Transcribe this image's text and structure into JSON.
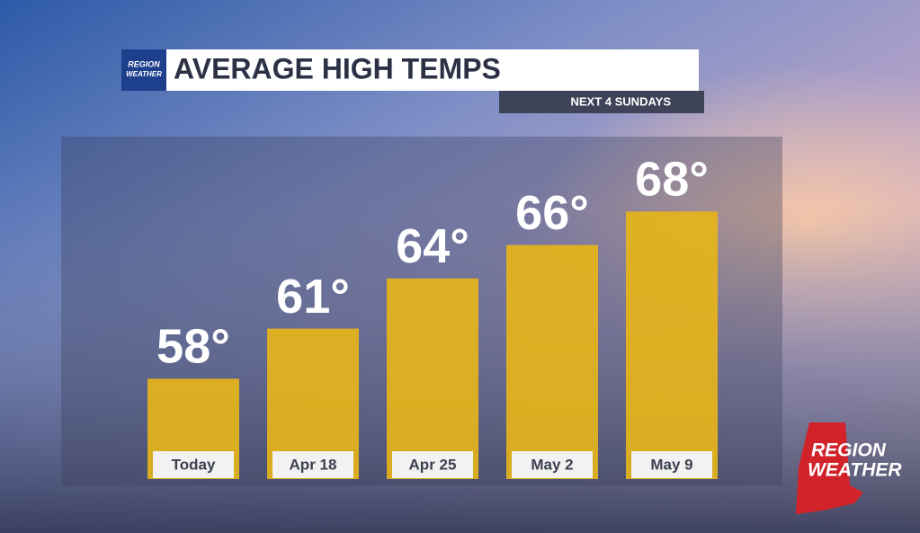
{
  "chart_data": {
    "type": "bar",
    "title": "AVERAGE HIGH TEMPS",
    "subtitle": "NEXT 4 SUNDAYS",
    "categories": [
      "Today",
      "Apr 18",
      "Apr 25",
      "May 2",
      "May 9"
    ],
    "values": [
      58,
      61,
      64,
      66,
      68
    ],
    "value_labels": [
      "58°",
      "61°",
      "64°",
      "66°",
      "68°"
    ],
    "color": "#e6b41a",
    "ylim": [
      52,
      72
    ],
    "logo": [
      "REGION",
      "WEATHER"
    ]
  }
}
